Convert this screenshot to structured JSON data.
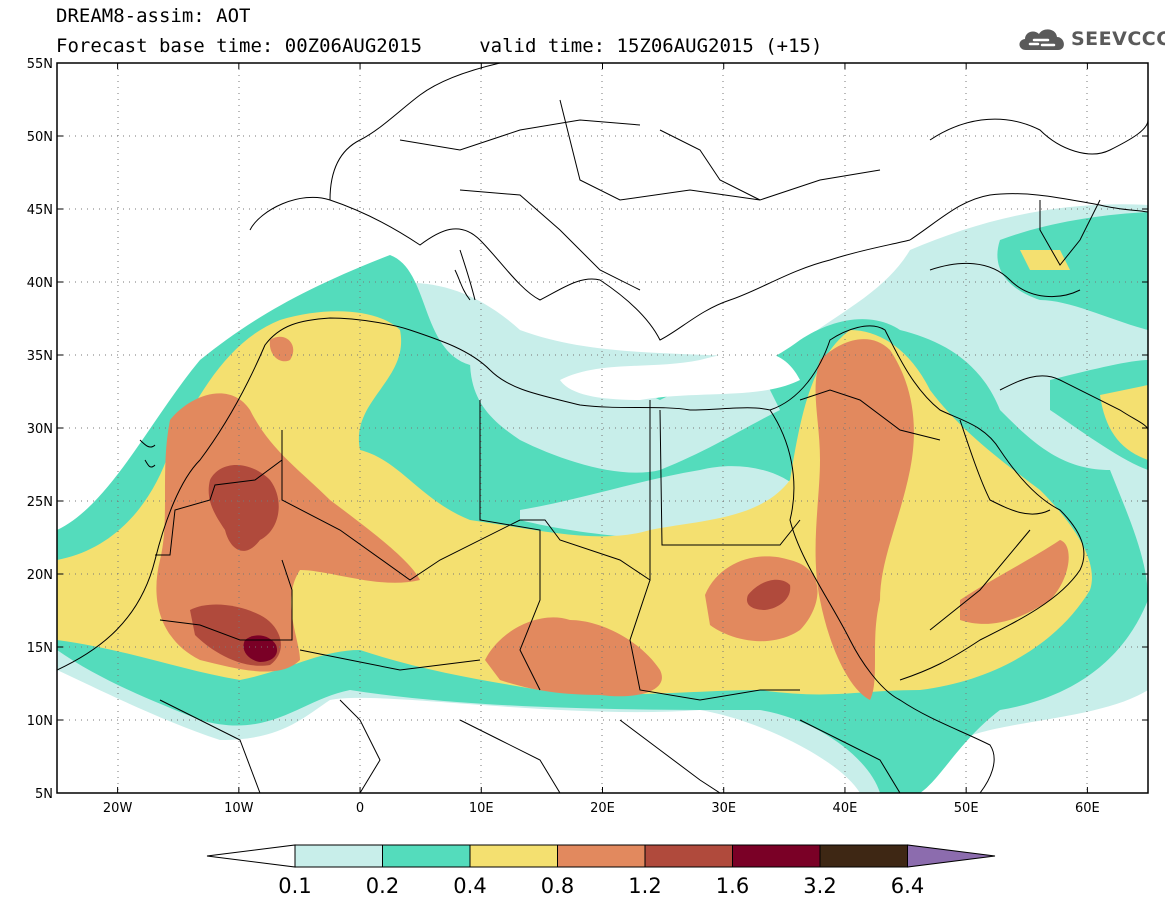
{
  "header": {
    "title": "DREAM8-assim: AOT",
    "subtitle": "Forecast base time: 00Z06AUG2015     valid time: 15Z06AUG2015 (+15)"
  },
  "logo": {
    "text": "SEEVCCC",
    "icon": "cloud-icon"
  },
  "map": {
    "type": "filled-contour-map",
    "lon_range": [
      -25,
      65
    ],
    "lat_range": [
      5,
      55
    ],
    "grid": "dotted",
    "lat_ticks": [
      {
        "value": 55,
        "label": "55N"
      },
      {
        "value": 50,
        "label": "50N"
      },
      {
        "value": 45,
        "label": "45N"
      },
      {
        "value": 40,
        "label": "40N"
      },
      {
        "value": 35,
        "label": "35N"
      },
      {
        "value": 30,
        "label": "30N"
      },
      {
        "value": 25,
        "label": "25N"
      },
      {
        "value": 20,
        "label": "20N"
      },
      {
        "value": 15,
        "label": "15N"
      },
      {
        "value": 10,
        "label": "10N"
      },
      {
        "value": 5,
        "label": "5N"
      }
    ],
    "lon_ticks": [
      {
        "value": -20,
        "label": "20W"
      },
      {
        "value": -10,
        "label": "10W"
      },
      {
        "value": 0,
        "label": "0"
      },
      {
        "value": 10,
        "label": "10E"
      },
      {
        "value": 20,
        "label": "20E"
      },
      {
        "value": 30,
        "label": "30E"
      },
      {
        "value": 40,
        "label": "40E"
      },
      {
        "value": 50,
        "label": "50E"
      },
      {
        "value": 60,
        "label": "60E"
      }
    ]
  },
  "colorbar": {
    "levels": [
      "0.1",
      "0.2",
      "0.4",
      "0.8",
      "1.2",
      "1.6",
      "3.2",
      "6.4"
    ],
    "colors": [
      "#ffffff",
      "#c8eeea",
      "#54dcbc",
      "#f4e070",
      "#e2895e",
      "#b04a3c",
      "#7a0026",
      "#3e2714",
      "#8c6cae"
    ]
  }
}
